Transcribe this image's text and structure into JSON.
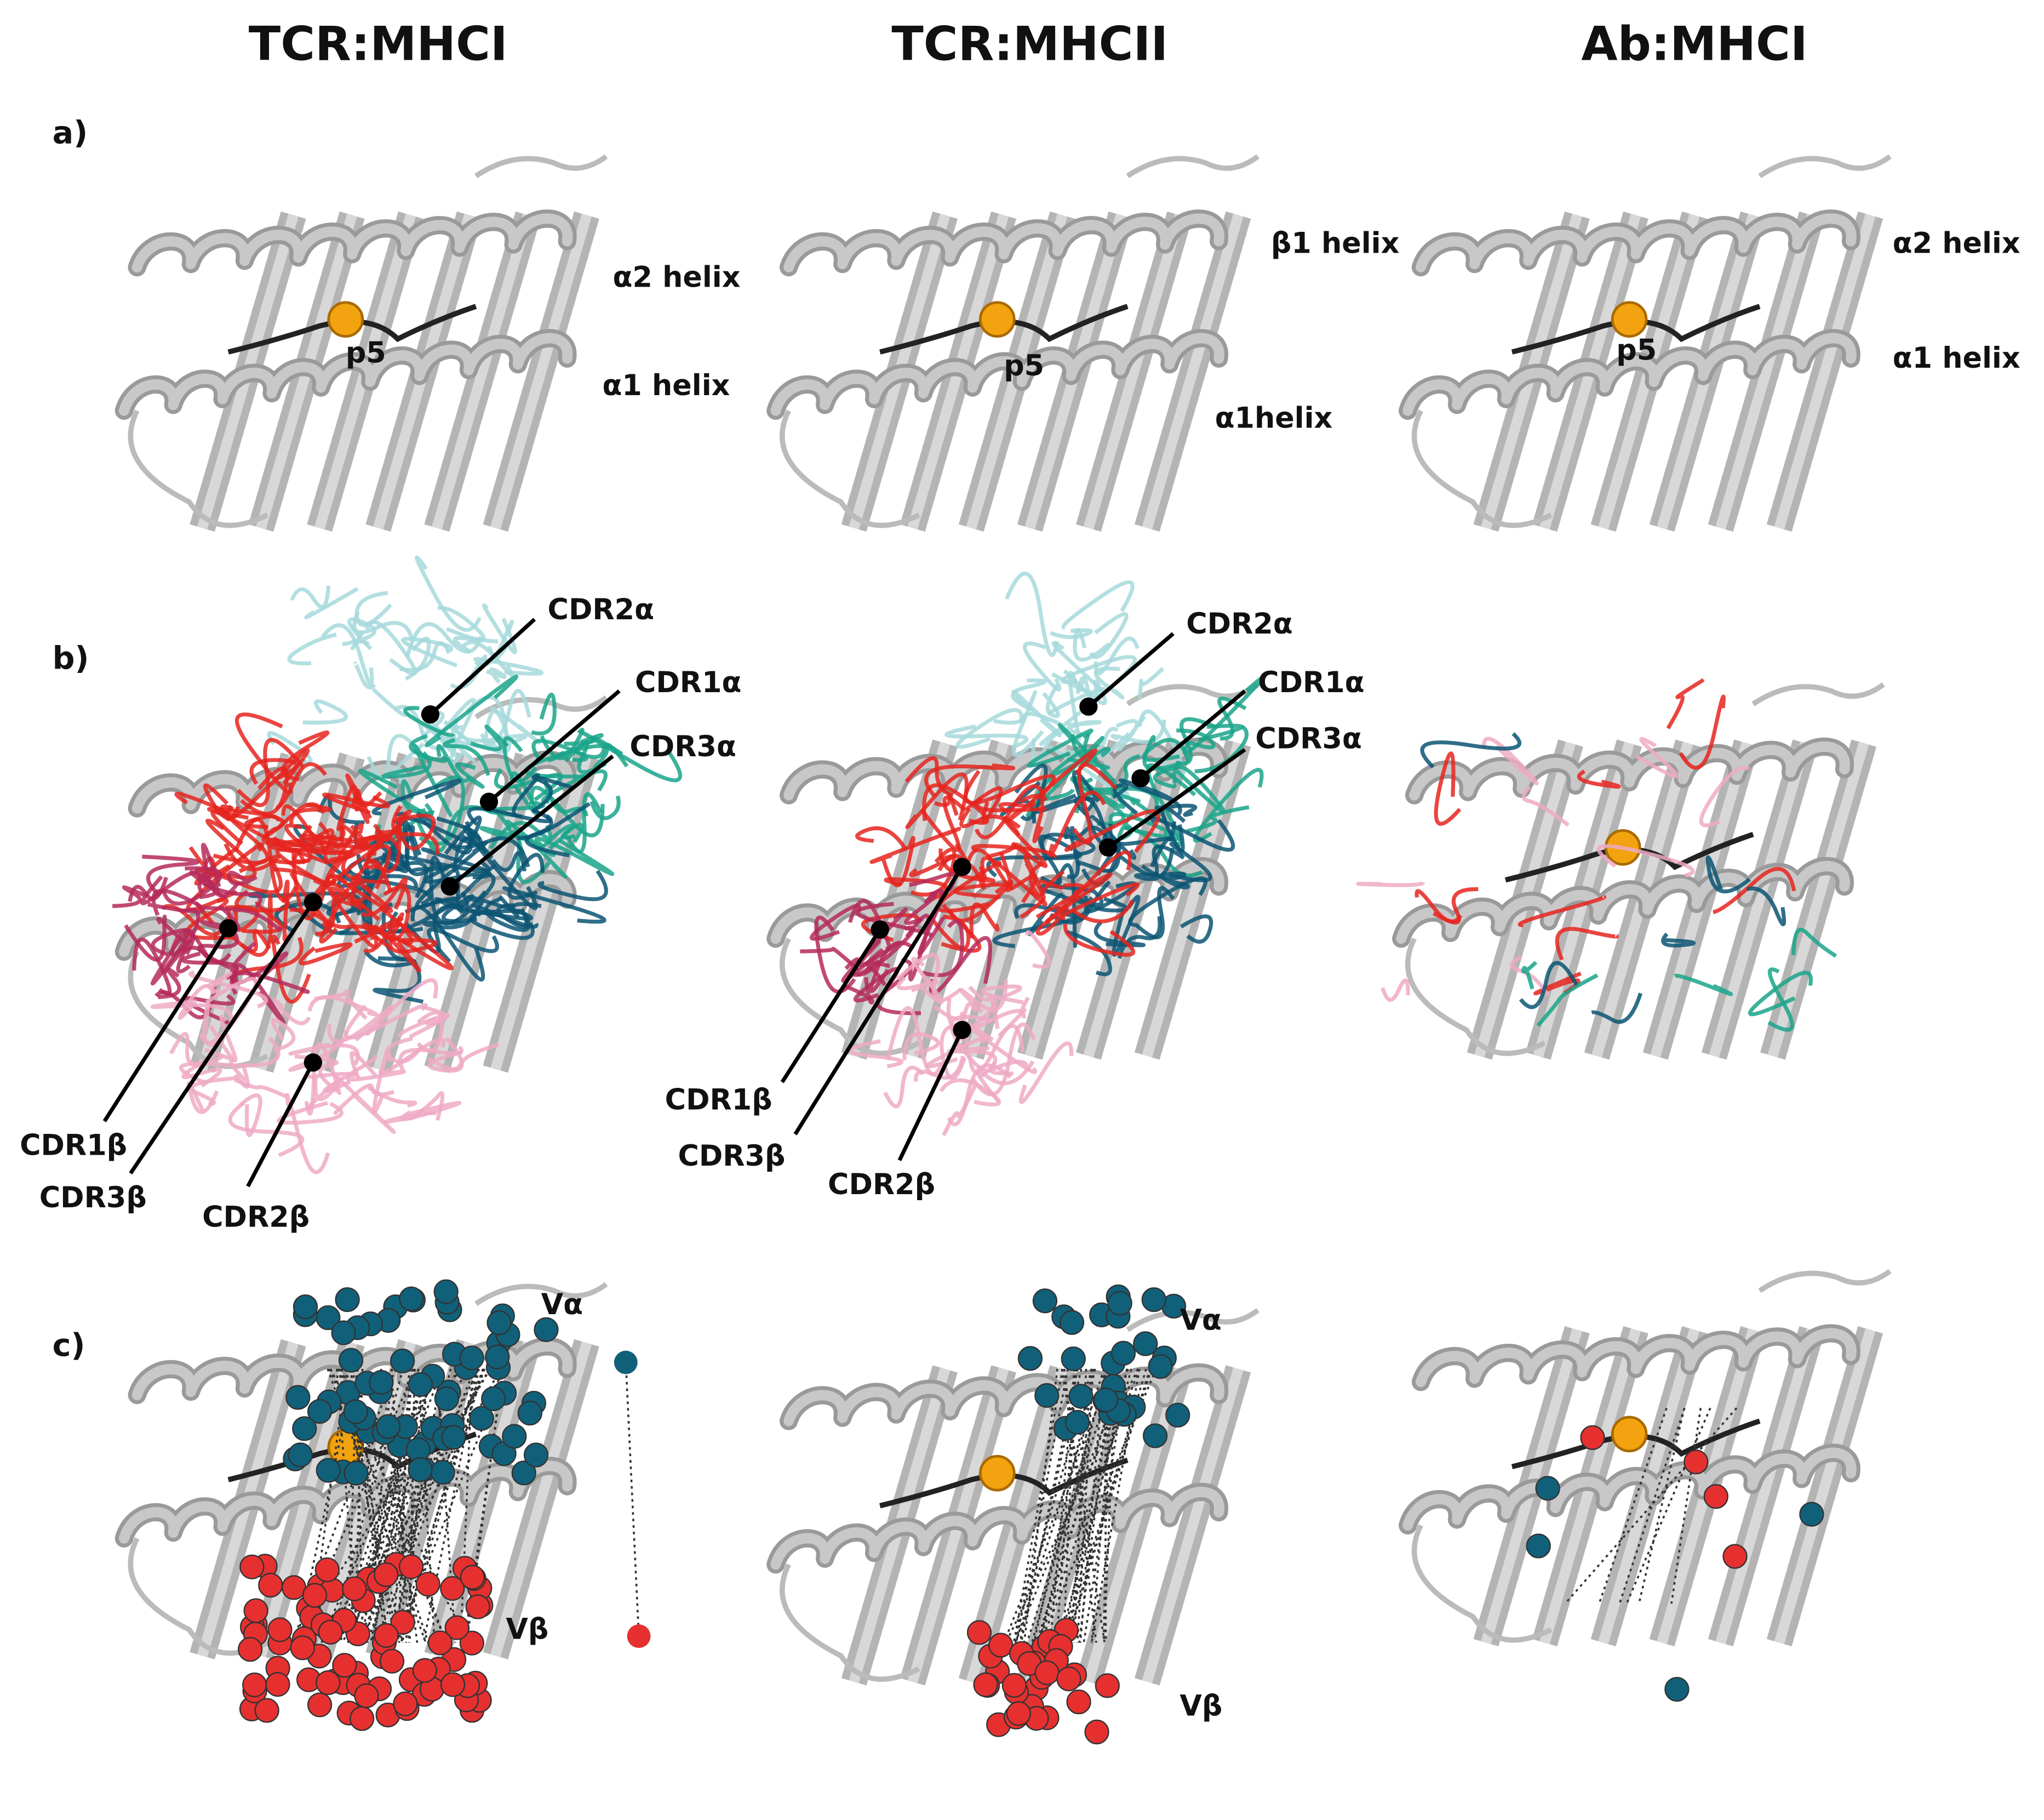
{
  "columns": [
    "TCR:MHCI",
    "TCR:MHCII",
    "Ab:MHCI"
  ],
  "rows": [
    {
      "label": "a)",
      "panels": [
        {
          "labels": [
            "α2 helix",
            "p5",
            "α1 helix"
          ]
        },
        {
          "labels": [
            "β1 helix",
            "p5",
            "α1helix"
          ]
        },
        {
          "labels": [
            "α2 helix",
            "p5",
            "α1 helix"
          ]
        }
      ]
    },
    {
      "label": "b)",
      "panels": [
        {
          "labels": [
            "CDR2α",
            "CDR1α",
            "CDR3α",
            "CDR1β",
            "CDR3β",
            "CDR2β"
          ]
        },
        {
          "labels": [
            "CDR2α",
            "CDR1α",
            "CDR3α",
            "CDR1β",
            "CDR3β",
            "CDR2β"
          ]
        },
        {
          "labels": []
        }
      ]
    },
    {
      "label": "c)",
      "panels": [
        {
          "labels": [
            "Vα",
            "Vβ"
          ]
        },
        {
          "labels": [
            "Vα",
            "Vβ"
          ]
        },
        {
          "labels": []
        }
      ]
    }
  ]
}
